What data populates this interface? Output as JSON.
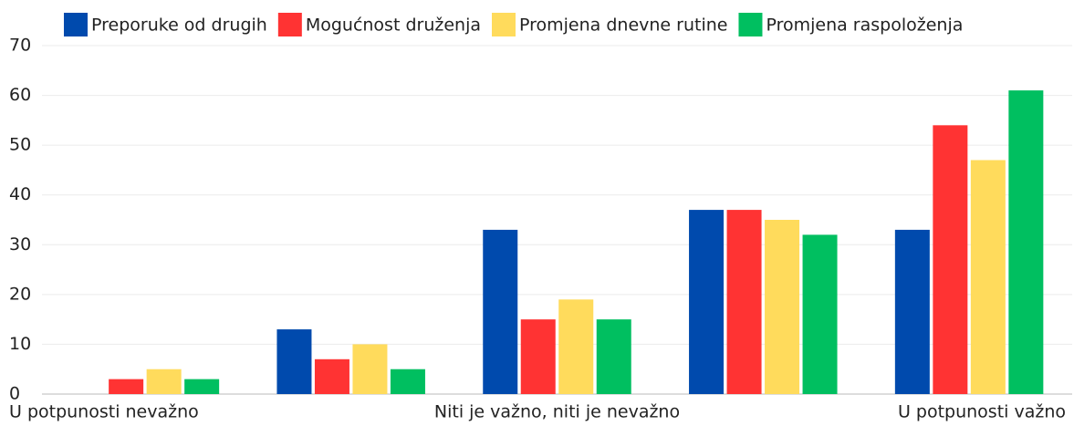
{
  "chart_data": {
    "type": "bar",
    "categories": [
      "U potpunosti nevažno",
      null,
      "Niti je važno, niti je nevažno",
      null,
      "U potpunosti važno"
    ],
    "series": [
      {
        "name": "Preporuke od drugih",
        "color": "#004aad",
        "values": [
          0,
          13,
          33,
          37,
          33
        ]
      },
      {
        "name": "Mogućnost druženja",
        "color": "#ff3333",
        "values": [
          3,
          7,
          15,
          37,
          54
        ]
      },
      {
        "name": "Promjena dnevne rutine",
        "color": "#ffdb5c",
        "values": [
          5,
          10,
          19,
          35,
          47
        ]
      },
      {
        "name": "Promjena raspoloženja",
        "color": "#00bf60",
        "values": [
          3,
          5,
          15,
          32,
          61
        ]
      }
    ],
    "ylim": [
      0,
      70
    ],
    "yticks": [
      0,
      10,
      20,
      30,
      40,
      50,
      60,
      70
    ],
    "grid": true,
    "legend": "top"
  }
}
